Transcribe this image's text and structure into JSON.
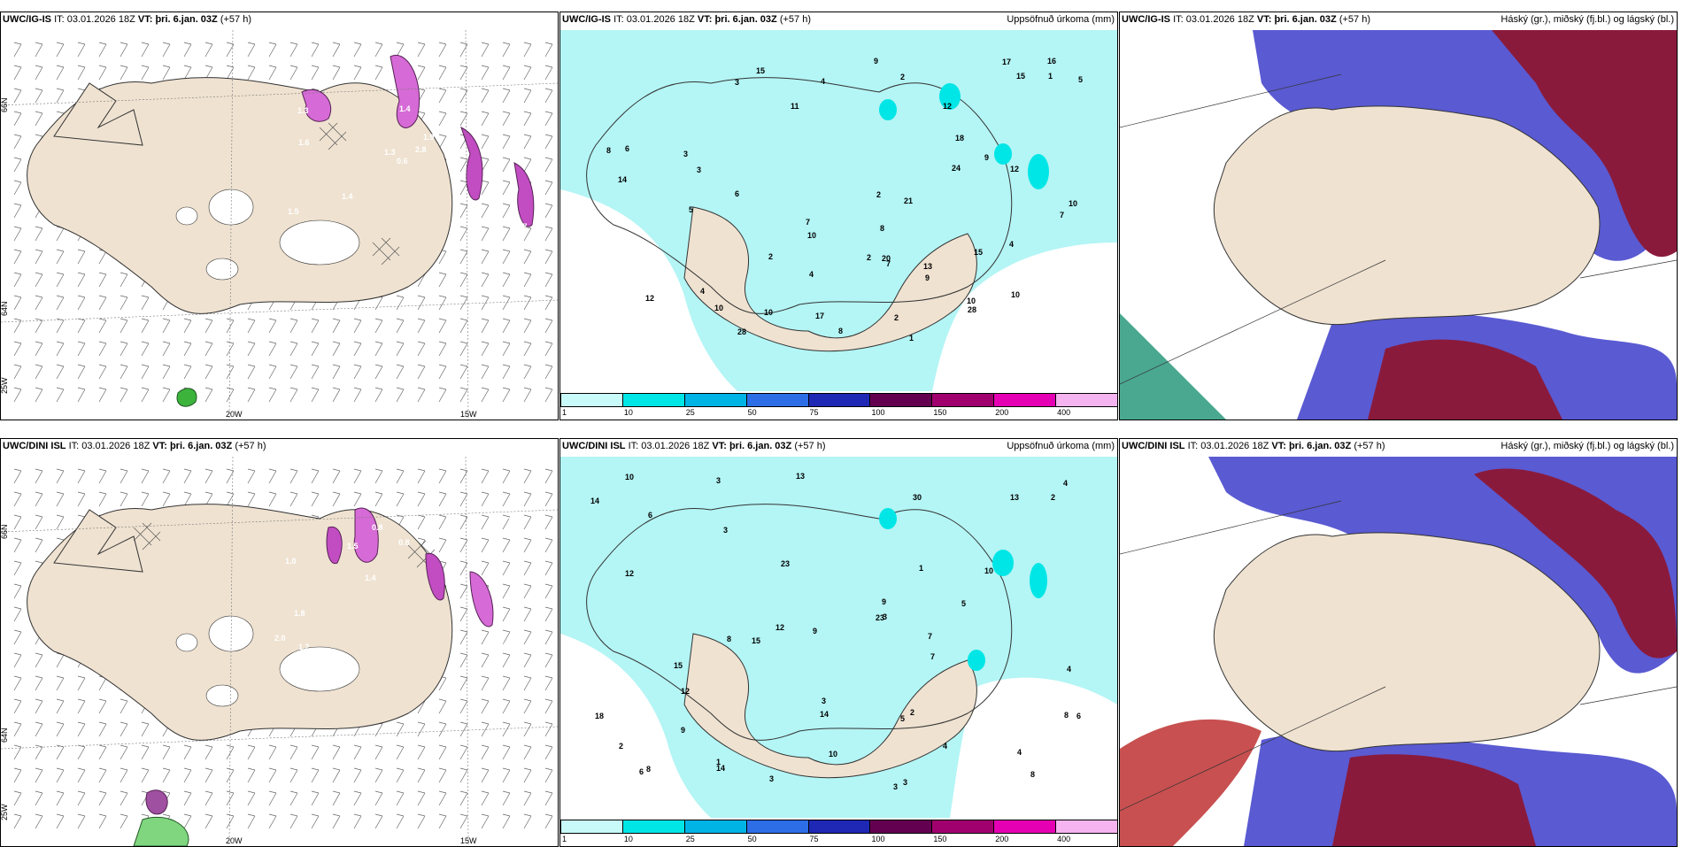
{
  "rows": [
    {
      "model": "UWC/IG-IS",
      "it_label": "IT:",
      "it_value": "03.01.2026 18Z",
      "vt_label": "VT:",
      "vt_value": "þri. 6.jan. 03Z",
      "lead": "(+57 h)",
      "panels": {
        "wind": {
          "lat1": "66N",
          "lat2": "64N",
          "lon1": "20W",
          "lon2": "15W",
          "corner": "25W"
        },
        "precip": {
          "title": "Uppsöfnuð úrkoma (mm)"
        },
        "cloud": {
          "title": "Háský (gr.), miðský (fj.bl.) og lágský (bl.)"
        }
      }
    },
    {
      "model": "UWC/DINI ISL",
      "it_label": "IT:",
      "it_value": "03.01.2026 18Z",
      "vt_label": "VT:",
      "vt_value": "þri. 6.jan. 03Z",
      "lead": "(+57 h)",
      "panels": {
        "wind": {
          "lat1": "66N",
          "lat2": "64N",
          "lon1": "20W",
          "lon2": "15W",
          "corner": "25W"
        },
        "precip": {
          "title": "Uppsöfnuð úrkoma (mm)"
        },
        "cloud": {
          "title": "Háský (gr.), miðský (fj.bl.) og lágský (bl.)"
        }
      }
    }
  ],
  "legend": {
    "ticks": [
      "1",
      "10",
      "25",
      "50",
      "75",
      "100",
      "150",
      "200",
      "400"
    ],
    "colors": [
      "#c8fafa",
      "#00e6e6",
      "#00b4e6",
      "#2d6ee6",
      "#1e28b4",
      "#640050",
      "#a0006e",
      "#e600b4",
      "#f5b4f0"
    ]
  },
  "precip_values": {
    "row0": [
      "1",
      "3",
      "4",
      "3",
      "9",
      "2",
      "7",
      "6",
      "10",
      "10",
      "12",
      "8",
      "7",
      "20",
      "24",
      "17",
      "14",
      "15",
      "15",
      "12",
      "10",
      "7",
      "28",
      "28",
      "21",
      "18",
      "5",
      "3",
      "8",
      "11",
      "9",
      "16",
      "12",
      "10",
      "15",
      "17",
      "9",
      "6",
      "10",
      "13",
      "4",
      "2",
      "5",
      "10",
      "2",
      "4",
      "2",
      "4",
      "8",
      "1",
      "2"
    ],
    "row1": [
      "3",
      "3",
      "1",
      "4",
      "3",
      "6",
      "8",
      "8",
      "13",
      "23",
      "13",
      "10",
      "12",
      "14",
      "30",
      "23",
      "12",
      "14",
      "15",
      "14",
      "5",
      "4",
      "9",
      "6",
      "10",
      "15",
      "18",
      "12",
      "10",
      "7",
      "9",
      "3",
      "3",
      "2",
      "9",
      "7",
      "8",
      "2",
      "1",
      "4",
      "3",
      "5",
      "6",
      "8",
      "3",
      "2",
      "4"
    ]
  },
  "wind_values": {
    "row0": [
      "0.6",
      "1.3",
      "1.3",
      "1.5",
      "1.9",
      "1.4",
      "0.9",
      "1.4",
      "2.3",
      "2.8",
      "0.8",
      "1.7",
      "1.6"
    ],
    "row1": [
      "1.3",
      "1.0",
      "1.4",
      "1.4",
      "1.6",
      "1.2",
      "0.8",
      "0.8",
      "1.8",
      "1.5",
      "2.0"
    ]
  }
}
